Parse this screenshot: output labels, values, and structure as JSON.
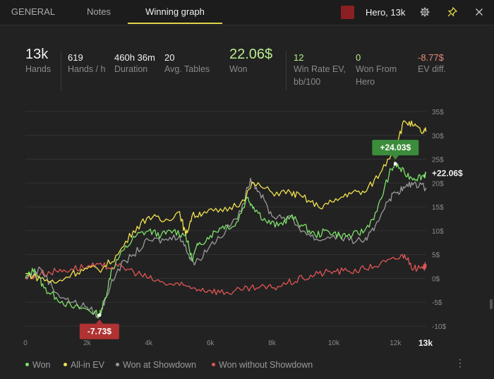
{
  "tabs": [
    {
      "label": "GENERAL"
    },
    {
      "label": "Notes"
    },
    {
      "label": "Winning graph"
    }
  ],
  "player": {
    "label": "Hero, 13k",
    "color": "#8b1f24"
  },
  "stats": {
    "hands": {
      "value": "13k",
      "label": "Hands"
    },
    "hands_per_hour": {
      "value": "619",
      "label": "Hands / h"
    },
    "duration": {
      "value": "460h 36m",
      "label": "Duration"
    },
    "avg_tables": {
      "value": "20",
      "label": "Avg. Tables"
    },
    "won": {
      "value": "22.06$",
      "label": "Won"
    },
    "win_rate_ev": {
      "value": "12",
      "label_line1": "Win Rate EV,",
      "label_line2": "bb/100"
    },
    "won_from_hero": {
      "value": "0",
      "label_line1": "Won From",
      "label_line2": "Hero"
    },
    "ev_diff": {
      "value": "-8.77$",
      "label": "EV diff."
    }
  },
  "colors": {
    "won": "#7ee06a",
    "allin_ev": "#f2e24e",
    "showdown": "#9a9a9a",
    "no_showdown": "#e05555",
    "accent": "#e0d24a"
  },
  "chart_data": {
    "type": "line",
    "x_ticks": [
      "0",
      "2k",
      "4k",
      "6k",
      "8k",
      "10k",
      "12k"
    ],
    "x_end_label": "13k",
    "y_ticks": [
      "35$",
      "30$",
      "25$",
      "20$",
      "15$",
      "10$",
      "5$",
      "0$",
      "-5$",
      "-10$"
    ],
    "ylim": [
      -10,
      35
    ],
    "xlim": [
      0,
      13000
    ],
    "series": [
      {
        "name": "Won",
        "color": "#7ee06a",
        "x": [
          0,
          300,
          600,
          1000,
          1500,
          2000,
          2400,
          2600,
          2800,
          3200,
          3600,
          4000,
          4400,
          4800,
          5200,
          5400,
          5600,
          6000,
          6400,
          6800,
          7200,
          7400,
          7800,
          8200,
          8600,
          9000,
          9400,
          9800,
          10200,
          10600,
          11000,
          11400,
          11800,
          12000,
          12300,
          12600,
          12900,
          13000
        ],
        "y": [
          0,
          2,
          -2,
          -4,
          -6,
          -6.5,
          -7.73,
          -4,
          2,
          6,
          9,
          10,
          9,
          10,
          9,
          4,
          7,
          9,
          11,
          11,
          17,
          15,
          12,
          11,
          13,
          11,
          9,
          10,
          9,
          9,
          10,
          14,
          22,
          24.03,
          22,
          21,
          21.5,
          22.06
        ]
      },
      {
        "name": "All-in EV",
        "color": "#f2e24e",
        "x": [
          0,
          500,
          1000,
          1500,
          2000,
          2500,
          3000,
          3500,
          4000,
          4500,
          5000,
          5200,
          5400,
          5800,
          6400,
          7000,
          7400,
          8000,
          8600,
          9000,
          9500,
          10000,
          10500,
          11000,
          11500,
          12000,
          12300,
          12600,
          12900,
          13000
        ],
        "y": [
          1,
          0,
          -1,
          1,
          2,
          2,
          5,
          10,
          13,
          12,
          14,
          9,
          13,
          14,
          14,
          16,
          20,
          18,
          18,
          17,
          15,
          16,
          18,
          18,
          22,
          28,
          33,
          32,
          30.5,
          31
        ]
      },
      {
        "name": "Won at Showdown",
        "color": "#9a9a9a",
        "x": [
          0,
          500,
          1000,
          1500,
          2000,
          2400,
          2600,
          3000,
          3500,
          4000,
          4500,
          5000,
          5300,
          5500,
          6000,
          6500,
          7000,
          7300,
          7600,
          8000,
          8500,
          9000,
          9500,
          10000,
          10500,
          11000,
          11300,
          11700,
          12000,
          12300,
          12600,
          13000
        ],
        "y": [
          0,
          2,
          -3,
          -5,
          -6,
          -8,
          -4,
          2,
          5,
          8,
          8,
          9,
          5,
          3,
          7,
          10,
          14,
          21,
          18,
          13,
          13,
          10,
          8,
          9,
          8,
          8,
          10,
          16,
          18,
          19,
          20,
          19
        ]
      },
      {
        "name": "Won without Showdown",
        "color": "#e05555",
        "x": [
          0,
          500,
          1000,
          1500,
          2000,
          2500,
          3000,
          3500,
          4000,
          4500,
          5000,
          5500,
          6000,
          6500,
          7000,
          7500,
          8000,
          8500,
          9000,
          9500,
          10000,
          10500,
          11000,
          11500,
          12000,
          12300,
          12600,
          12900,
          13000
        ],
        "y": [
          0,
          1,
          1.5,
          2,
          2.5,
          2.5,
          2.5,
          1.5,
          0,
          -1,
          -1.5,
          -2,
          -2.5,
          -3,
          -2.5,
          -2,
          -2,
          -1,
          0,
          1,
          1.5,
          1.5,
          2,
          3,
          4,
          5,
          2,
          2,
          3
        ]
      }
    ],
    "annotations": [
      {
        "label": "+24.03$",
        "x": 12000,
        "y": 24.03,
        "color": "#3b8c3b"
      },
      {
        "label": "-7.73$",
        "x": 2400,
        "y": -7.73,
        "color": "#b03232"
      },
      {
        "label": "+22.06$",
        "x": 13000,
        "y": 22.06
      }
    ]
  },
  "legend": [
    {
      "label": "Won",
      "color": "#7ee06a"
    },
    {
      "label": "All-in EV",
      "color": "#f2e24e"
    },
    {
      "label": "Won at Showdown",
      "color": "#9a9a9a"
    },
    {
      "label": "Won without Showdown",
      "color": "#e05555"
    }
  ]
}
